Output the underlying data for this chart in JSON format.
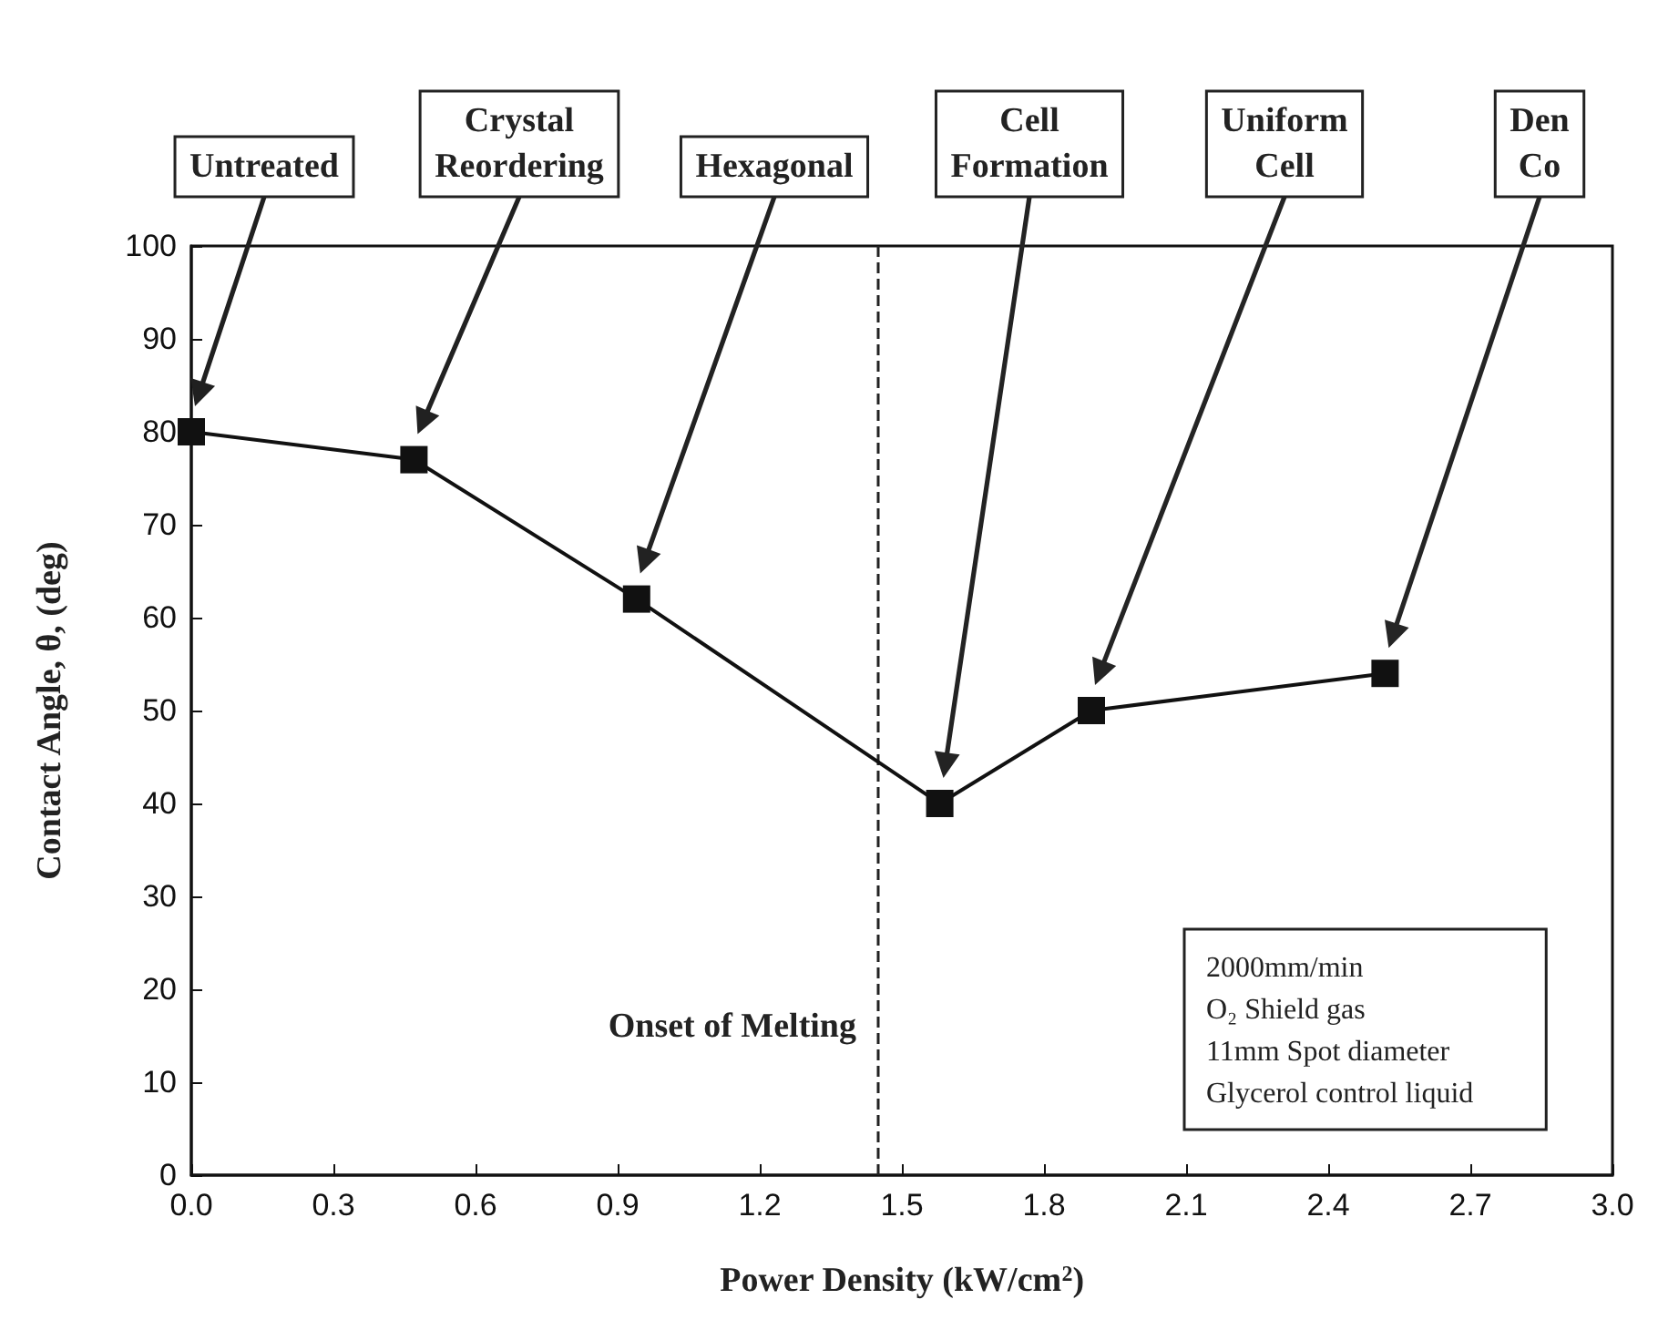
{
  "chart_data": {
    "type": "line",
    "xlabel": "Power Density (kW/cm$^{2}$)",
    "ylabel": "Contact Angle, θ, (deg)",
    "x": [
      0,
      0.47,
      0.94,
      1.58,
      1.9,
      2.52
    ],
    "series": [
      {
        "color": "#111111",
        "values": [
          80,
          77,
          62,
          40,
          50,
          54
        ]
      }
    ],
    "marker": "square",
    "line_style": "solid",
    "grid": false,
    "xlim": [
      0,
      3
    ],
    "xticks": [
      {
        "value": 0,
        "label": "0.0"
      },
      0.3,
      0.6,
      0.9,
      1.2,
      1.5,
      1.8,
      2.1,
      2.4,
      2.7,
      {
        "value": 3,
        "label": "3.0"
      }
    ],
    "ylim": [
      0,
      100
    ],
    "yticks": [
      0,
      10,
      20,
      30,
      40,
      50,
      60,
      70,
      80,
      90,
      100
    ],
    "ref_lines": [
      {
        "axis": "x",
        "value": 1.45,
        "label": "Onset of Melting",
        "line_style": "dashed",
        "color": "#222222"
      }
    ],
    "annotations": [
      "Untreated",
      "Crystal\nReordering",
      "Hexagonal",
      "Cell\nFormation",
      "Uniform\nCell",
      "Den\nCo",
      "2000mm/min\nO₂ Shield gas\n11mm Spot diameter\nGlycerol control liquid"
    ]
  }
}
